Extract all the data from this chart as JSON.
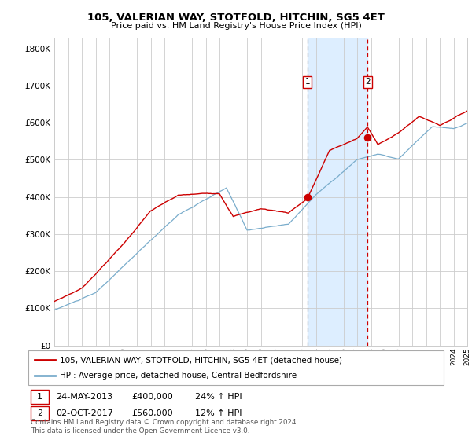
{
  "title": "105, VALERIAN WAY, STOTFOLD, HITCHIN, SG5 4ET",
  "subtitle": "Price paid vs. HM Land Registry's House Price Index (HPI)",
  "ylabel_ticks": [
    "£0",
    "£100K",
    "£200K",
    "£300K",
    "£400K",
    "£500K",
    "£600K",
    "£700K",
    "£800K"
  ],
  "y_values": [
    0,
    100000,
    200000,
    300000,
    400000,
    500000,
    600000,
    700000,
    800000
  ],
  "ylim": [
    0,
    830000
  ],
  "x_start_year": 1995,
  "x_end_year": 2025,
  "sale1_year": 2013.38,
  "sale1_price": 400000,
  "sale1_label": "1",
  "sale1_date": "24-MAY-2013",
  "sale1_amount": "£400,000",
  "sale1_hpi": "24% ↑ HPI",
  "sale2_year": 2017.75,
  "sale2_price": 560000,
  "sale2_label": "2",
  "sale2_date": "02-OCT-2017",
  "sale2_amount": "£560,000",
  "sale2_hpi": "12% ↑ HPI",
  "red_line_color": "#cc0000",
  "blue_line_color": "#7aadcc",
  "shade_color": "#ddeeff",
  "dashed_gray_color": "#999999",
  "dashed_red_color": "#cc0000",
  "grid_color": "#cccccc",
  "background_color": "#ffffff",
  "legend_label_red": "105, VALERIAN WAY, STOTFOLD, HITCHIN, SG5 4ET (detached house)",
  "legend_label_blue": "HPI: Average price, detached house, Central Bedfordshire",
  "footer_line1": "Contains HM Land Registry data © Crown copyright and database right 2024.",
  "footer_line2": "This data is licensed under the Open Government Licence v3.0."
}
